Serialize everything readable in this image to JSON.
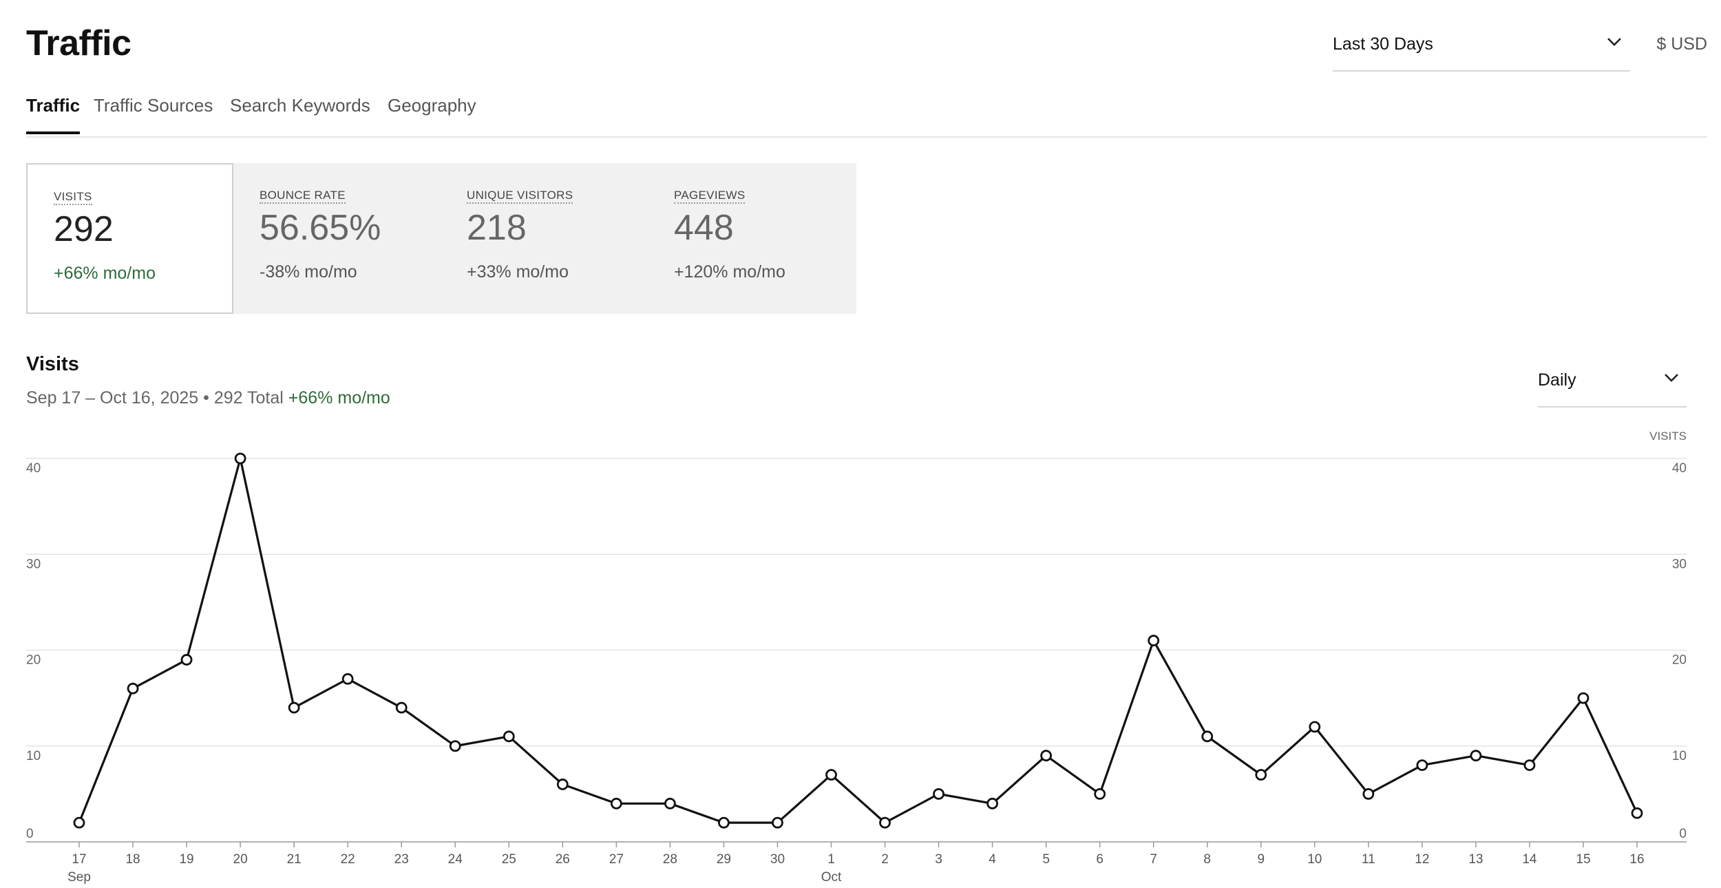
{
  "header": {
    "title": "Traffic",
    "range_select": "Last 30 Days",
    "currency": "$ USD"
  },
  "tabs": [
    {
      "label": "Traffic",
      "active": true
    },
    {
      "label": "Traffic Sources",
      "active": false
    },
    {
      "label": "Search Keywords",
      "active": false
    },
    {
      "label": "Geography",
      "active": false
    }
  ],
  "metrics": [
    {
      "label": "VISITS",
      "value": "292",
      "change": "+66% mo/mo",
      "active": true
    },
    {
      "label": "BOUNCE RATE",
      "value": "56.65%",
      "change": "-38% mo/mo",
      "active": false
    },
    {
      "label": "UNIQUE VISITORS",
      "value": "218",
      "change": "+33% mo/mo",
      "active": false
    },
    {
      "label": "PAGEVIEWS",
      "value": "448",
      "change": "+120% mo/mo",
      "active": false
    }
  ],
  "chart_section": {
    "title": "Visits",
    "subtitle": "Sep 17 – Oct 16, 2025 • 292 Total",
    "subtitle_change": "+66% mo/mo",
    "interval_select": "Daily",
    "right_axis_label": "VISITS"
  },
  "colors": {
    "positive": "#2f6b3a",
    "line": "#111111",
    "panel": "#f1f1f1"
  },
  "icons": {
    "range_chevron": "chevron-down-icon",
    "interval_chevron": "chevron-down-icon"
  },
  "chart_data": {
    "type": "line",
    "x": [
      "17",
      "18",
      "19",
      "20",
      "21",
      "22",
      "23",
      "24",
      "25",
      "26",
      "27",
      "28",
      "29",
      "30",
      "1",
      "2",
      "3",
      "4",
      "5",
      "6",
      "7",
      "8",
      "9",
      "10",
      "11",
      "12",
      "13",
      "14",
      "15",
      "16"
    ],
    "month_labels": [
      {
        "at": "17",
        "label": "Sep"
      },
      {
        "at": "1",
        "label": "Oct"
      }
    ],
    "series": [
      {
        "values": [
          2,
          16,
          19,
          40,
          14,
          17,
          14,
          10,
          11,
          6,
          4,
          4,
          2,
          2,
          7,
          2,
          5,
          4,
          9,
          5,
          21,
          11,
          7,
          12,
          5,
          8,
          9,
          8,
          15,
          3
        ]
      }
    ],
    "y_ticks": [
      0,
      10,
      20,
      30,
      40
    ],
    "ylim": [
      0,
      40
    ],
    "grid": true,
    "dual_y_axis": true
  }
}
